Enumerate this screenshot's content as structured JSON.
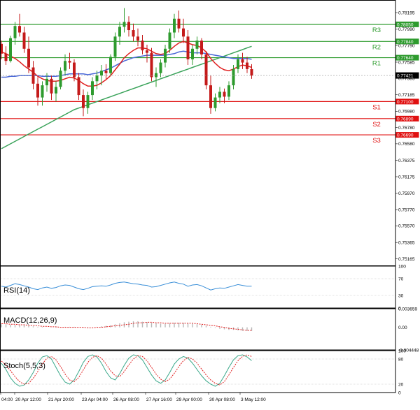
{
  "colors": {
    "background": "#ffffff",
    "frame": "#000000",
    "grid": "#d8d8d8",
    "candle_up": "#2e9b2e",
    "candle_down": "#c41a1a",
    "resistance": "#2e9b2e",
    "support": "#e01010",
    "ema_fast": "#e02020",
    "ema_mid": "#4a68d8",
    "ema_slow": "#3aa35a",
    "last_price_bg": "#000000",
    "rsi": "#3a8fd8",
    "macd_hist": "#b8b8b8",
    "macd_signal": "#e02020",
    "stoch_main": "#3aa88a",
    "stoch_signal": "#e02020"
  },
  "chart_data": {
    "type": "candlestick",
    "main": {
      "price_axis_ticks": [
        "0.78195",
        "0.77990",
        "0.77790",
        "0.77585",
        "0.77385",
        "0.77185",
        "0.76980",
        "0.76780",
        "0.76580",
        "0.76375",
        "0.76175",
        "0.75970",
        "0.75770",
        "0.75570",
        "0.75365",
        "0.75165"
      ],
      "levels": [
        {
          "label": "R3",
          "price": "0.78050",
          "kind": "resistance",
          "value": 0.7805
        },
        {
          "label": "R2",
          "price": "0.77840",
          "kind": "resistance",
          "value": 0.7784
        },
        {
          "label": "R1",
          "price": "0.77640",
          "kind": "resistance",
          "value": 0.7764
        },
        {
          "label": "S1",
          "price": "0.77100",
          "kind": "support",
          "value": 0.771
        },
        {
          "label": "S2",
          "price": "0.76890",
          "kind": "support",
          "value": 0.7689
        },
        {
          "label": "S3",
          "price": "0.76690",
          "kind": "support",
          "value": 0.7669
        }
      ],
      "last_price": "0.77421",
      "last_value": 0.77421,
      "x_labels": [
        "04:00",
        "20 Apr 12:00",
        "21 Apr 20:00",
        "23 Apr 04:00",
        "26 Apr 08:00",
        "27 Apr 16:00",
        "29 Apr 00:00",
        "30 Apr 08:00",
        "3 May 12:00"
      ],
      "candles": [
        [
          0.7781,
          0.7785,
          0.7762,
          0.7769
        ],
        [
          0.7769,
          0.7778,
          0.7755,
          0.776
        ],
        [
          0.776,
          0.7791,
          0.7758,
          0.7788
        ],
        [
          0.7788,
          0.7808,
          0.778,
          0.7803
        ],
        [
          0.7803,
          0.7818,
          0.779,
          0.7795
        ],
        [
          0.7795,
          0.7802,
          0.777,
          0.7775
        ],
        [
          0.7775,
          0.779,
          0.7745,
          0.7752
        ],
        [
          0.7752,
          0.776,
          0.7725,
          0.7732
        ],
        [
          0.7732,
          0.774,
          0.7705,
          0.7715
        ],
        [
          0.7715,
          0.7735,
          0.7705,
          0.773
        ],
        [
          0.773,
          0.7745,
          0.7722,
          0.7738
        ],
        [
          0.7738,
          0.7742,
          0.7712,
          0.772
        ],
        [
          0.772,
          0.7735,
          0.771,
          0.7728
        ],
        [
          0.7728,
          0.7752,
          0.7725,
          0.7748
        ],
        [
          0.7748,
          0.7768,
          0.7742,
          0.776
        ],
        [
          0.776,
          0.777,
          0.775,
          0.7758
        ],
        [
          0.7758,
          0.7762,
          0.7735,
          0.774
        ],
        [
          0.774,
          0.7745,
          0.7712,
          0.7718
        ],
        [
          0.7718,
          0.7725,
          0.7692,
          0.7702
        ],
        [
          0.7702,
          0.7722,
          0.7695,
          0.7718
        ],
        [
          0.7718,
          0.774,
          0.7712,
          0.7735
        ],
        [
          0.7735,
          0.7748,
          0.7725,
          0.7742
        ],
        [
          0.7742,
          0.7755,
          0.773,
          0.7748
        ],
        [
          0.7748,
          0.7756,
          0.7738,
          0.7745
        ],
        [
          0.7745,
          0.7768,
          0.7742,
          0.7765
        ],
        [
          0.7765,
          0.7795,
          0.776,
          0.779
        ],
        [
          0.779,
          0.7808,
          0.778,
          0.7802
        ],
        [
          0.7802,
          0.7825,
          0.7795,
          0.7808
        ],
        [
          0.7808,
          0.7815,
          0.779,
          0.7798
        ],
        [
          0.7798,
          0.7806,
          0.7784,
          0.779
        ],
        [
          0.779,
          0.78,
          0.7778,
          0.7785
        ],
        [
          0.7785,
          0.7792,
          0.7768,
          0.7773
        ],
        [
          0.7773,
          0.778,
          0.7758,
          0.777
        ],
        [
          0.777,
          0.7776,
          0.7735,
          0.774
        ],
        [
          0.774,
          0.7752,
          0.7728,
          0.7745
        ],
        [
          0.7745,
          0.7762,
          0.774,
          0.7758
        ],
        [
          0.7758,
          0.778,
          0.7752,
          0.7775
        ],
        [
          0.7775,
          0.78,
          0.777,
          0.7795
        ],
        [
          0.7795,
          0.7818,
          0.7788,
          0.7812
        ],
        [
          0.7812,
          0.7822,
          0.7795,
          0.78
        ],
        [
          0.78,
          0.7812,
          0.7782,
          0.779
        ],
        [
          0.779,
          0.7798,
          0.7755,
          0.7762
        ],
        [
          0.7762,
          0.778,
          0.7755,
          0.7775
        ],
        [
          0.7775,
          0.779,
          0.7768,
          0.7785
        ],
        [
          0.7785,
          0.7788,
          0.7762,
          0.7768
        ],
        [
          0.7768,
          0.7772,
          0.7725,
          0.773
        ],
        [
          0.773,
          0.7742,
          0.7695,
          0.7702
        ],
        [
          0.7702,
          0.772,
          0.7698,
          0.7715
        ],
        [
          0.7715,
          0.7728,
          0.7708,
          0.7722
        ],
        [
          0.7722,
          0.7726,
          0.7708,
          0.7716
        ],
        [
          0.7716,
          0.7735,
          0.7712,
          0.773
        ],
        [
          0.773,
          0.7755,
          0.7725,
          0.775
        ],
        [
          0.775,
          0.7768,
          0.7745,
          0.7762
        ],
        [
          0.7762,
          0.777,
          0.775,
          0.7758
        ],
        [
          0.7758,
          0.7765,
          0.7745,
          0.775
        ],
        [
          0.775,
          0.7756,
          0.7738,
          0.7742
        ]
      ],
      "ema_fast": [
        0.7771,
        0.7769,
        0.7766,
        0.7763,
        0.7759,
        0.7754,
        0.775,
        0.7746,
        0.7741,
        0.7738,
        0.7736,
        0.7735,
        0.7735,
        0.7736,
        0.7738,
        0.774,
        0.7739,
        0.7736,
        0.7732,
        0.7729,
        0.7729,
        0.773,
        0.7733,
        0.7737,
        0.7742,
        0.7749,
        0.7756,
        0.7764,
        0.7769,
        0.7773,
        0.7776,
        0.7776,
        0.7775,
        0.7772,
        0.7769,
        0.7768,
        0.7769,
        0.7773,
        0.7778,
        0.7782,
        0.7784,
        0.7782,
        0.778,
        0.7779,
        0.7776,
        0.7771,
        0.7763,
        0.7757,
        0.7752,
        0.7749,
        0.7748,
        0.775,
        0.7753,
        0.7755,
        0.7754,
        0.7752
      ],
      "ema_mid": [
        0.774,
        0.774,
        0.7741,
        0.7741,
        0.7742,
        0.7742,
        0.7742,
        0.7742,
        0.7742,
        0.7741,
        0.7741,
        0.7741,
        0.7741,
        0.7742,
        0.7743,
        0.7744,
        0.7744,
        0.7744,
        0.7744,
        0.7743,
        0.7744,
        0.7745,
        0.7747,
        0.7749,
        0.7751,
        0.7754,
        0.7757,
        0.776,
        0.7762,
        0.7764,
        0.7765,
        0.7766,
        0.7767,
        0.7767,
        0.7767,
        0.7767,
        0.7767,
        0.7768,
        0.7769,
        0.7771,
        0.7772,
        0.7771,
        0.777,
        0.777,
        0.777,
        0.7769,
        0.7768,
        0.7767,
        0.7766,
        0.7765,
        0.7764,
        0.7763,
        0.7763,
        0.7763,
        0.7763,
        0.7762
      ],
      "ema_slow": [
        0.7652,
        0.7655,
        0.7658,
        0.7661,
        0.7664,
        0.7667,
        0.767,
        0.7673,
        0.7676,
        0.7679,
        0.7682,
        0.7685,
        0.7688,
        0.7691,
        0.7694,
        0.7697,
        0.77,
        0.7702,
        0.7704,
        0.7706,
        0.7708,
        0.771,
        0.7712,
        0.7714,
        0.7716,
        0.7718,
        0.772,
        0.7722,
        0.7724,
        0.7726,
        0.7728,
        0.773,
        0.7732,
        0.7734,
        0.7736,
        0.7738,
        0.774,
        0.7742,
        0.7744,
        0.7746,
        0.7748,
        0.775,
        0.7752,
        0.7754,
        0.7756,
        0.7758,
        0.776,
        0.7762,
        0.7764,
        0.7766,
        0.7768,
        0.777,
        0.7772,
        0.7774,
        0.7776,
        0.7778
      ]
    },
    "rsi": {
      "label": "RSI(14)",
      "axis_ticks": [
        "100",
        "70",
        "30",
        "0"
      ],
      "ylim": [
        0,
        100
      ],
      "values": [
        52,
        50,
        54,
        58,
        56,
        53,
        50,
        46,
        44,
        48,
        50,
        47,
        49,
        53,
        55,
        54,
        50,
        46,
        44,
        47,
        51,
        52,
        53,
        52,
        55,
        59,
        61,
        62,
        60,
        58,
        57,
        55,
        54,
        50,
        51,
        54,
        57,
        60,
        62,
        59,
        57,
        52,
        55,
        56,
        53,
        48,
        43,
        46,
        48,
        47,
        50,
        53,
        56,
        54,
        52,
        52
      ]
    },
    "macd": {
      "label": "MACD(12,26,9)",
      "axis_ticks": [
        "0.003659",
        "0.00",
        "-0.004448"
      ],
      "ylim": [
        -0.004448,
        0.003659
      ],
      "histogram": [
        0.0006,
        0.0006,
        0.0005,
        0.0005,
        0.0004,
        0.0004,
        0.0003,
        0.0002,
        0.0001,
        0.0001,
        0.0,
        0.0,
        -0.0001,
        0.0,
        0.0001,
        0.0001,
        0.0001,
        0.0,
        -0.0001,
        -0.0001,
        0.0,
        0.0001,
        0.0002,
        0.0003,
        0.0004,
        0.0006,
        0.0008,
        0.001,
        0.0011,
        0.0012,
        0.0012,
        0.0011,
        0.001,
        0.0009,
        0.0008,
        0.0007,
        0.0007,
        0.0008,
        0.0009,
        0.0009,
        0.0009,
        0.0008,
        0.0007,
        0.0006,
        0.0005,
        0.0003,
        0.0001,
        -0.0001,
        -0.0003,
        -0.0004,
        -0.0005,
        -0.0005,
        -0.0006,
        -0.0007,
        -0.0007,
        -0.0007
      ],
      "signal": [
        0.0007,
        0.0007,
        0.0006,
        0.0006,
        0.0005,
        0.0005,
        0.0004,
        0.0004,
        0.0003,
        0.0002,
        0.0002,
        0.0001,
        0.0001,
        0.0,
        0.0,
        0.0,
        0.0,
        0.0,
        0.0,
        -0.0001,
        -0.0001,
        0.0,
        0.0,
        0.0001,
        0.0002,
        0.0003,
        0.0004,
        0.0005,
        0.0006,
        0.0008,
        0.0009,
        0.0009,
        0.001,
        0.001,
        0.0009,
        0.0009,
        0.0008,
        0.0008,
        0.0008,
        0.0008,
        0.0008,
        0.0008,
        0.0008,
        0.0007,
        0.0006,
        0.0005,
        0.0004,
        0.0003,
        0.0001,
        0.0,
        -0.0002,
        -0.0003,
        -0.0004,
        -0.0005,
        -0.0006,
        -0.0006
      ]
    },
    "stoch": {
      "label": "Stoch(5,5,3)",
      "axis_ticks": [
        "100",
        "80",
        "20",
        "0"
      ],
      "ylim": [
        0,
        100
      ],
      "main": [
        70,
        55,
        35,
        22,
        15,
        18,
        30,
        48,
        70,
        85,
        88,
        80,
        60,
        40,
        25,
        20,
        30,
        50,
        72,
        86,
        90,
        85,
        70,
        50,
        35,
        30,
        45,
        65,
        82,
        90,
        88,
        78,
        60,
        42,
        28,
        22,
        30,
        48,
        68,
        80,
        86,
        82,
        70,
        55,
        40,
        28,
        20,
        15,
        22,
        40,
        60,
        78,
        88,
        90,
        85,
        76
      ],
      "signal": [
        75,
        66,
        52,
        38,
        26,
        20,
        22,
        34,
        50,
        68,
        82,
        86,
        78,
        62,
        44,
        30,
        26,
        36,
        54,
        72,
        84,
        88,
        82,
        68,
        52,
        40,
        38,
        50,
        66,
        80,
        88,
        86,
        76,
        60,
        44,
        32,
        26,
        32,
        46,
        62,
        76,
        84,
        80,
        70,
        56,
        42,
        30,
        22,
        18,
        26,
        42,
        60,
        76,
        86,
        90,
        86
      ]
    }
  }
}
